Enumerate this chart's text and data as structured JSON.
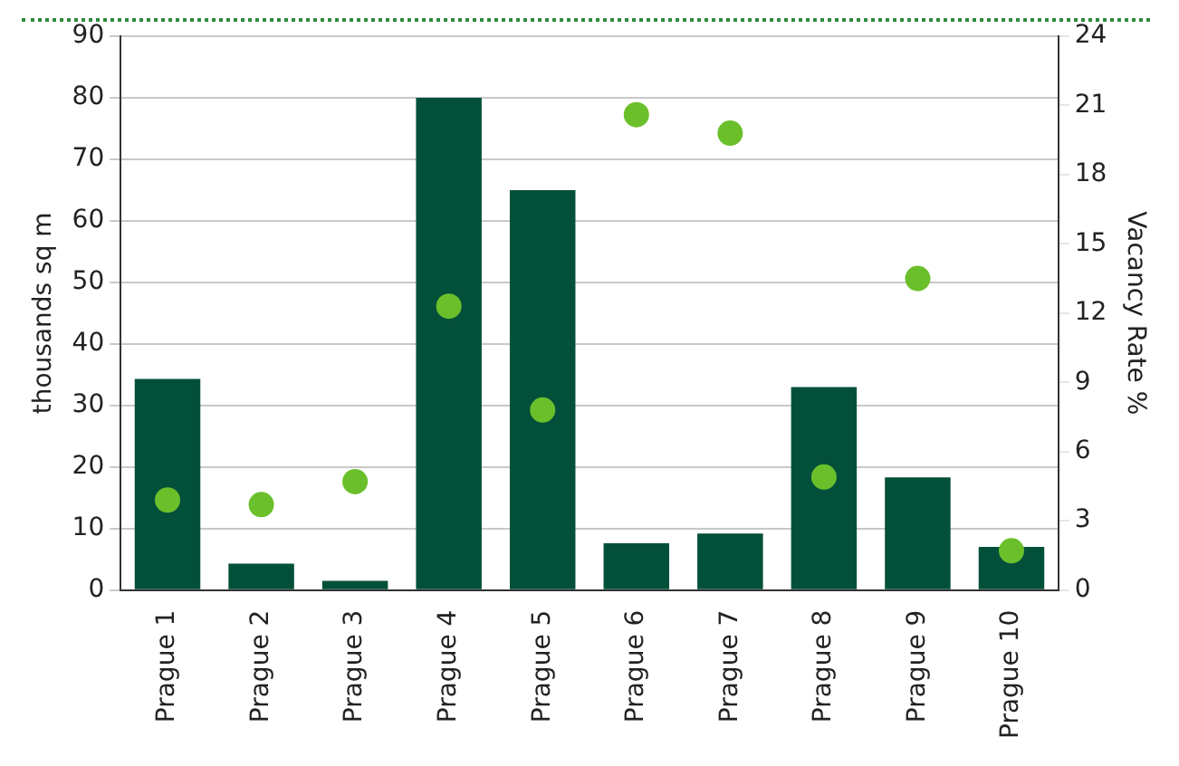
{
  "chart_data": {
    "type": "bar",
    "ylabel": "thousands sq m",
    "y2label": "Vacancy Rate %",
    "categories": [
      "Prague 1",
      "Prague 2",
      "Prague 3",
      "Prague 4",
      "Prague 5",
      "Prague 6",
      "Prague 7",
      "Prague 8",
      "Prague 9",
      "Prague 10"
    ],
    "series": [
      {
        "color": "#03503a",
        "values": [
          34.3,
          4.3,
          1.5,
          80,
          65,
          7.6,
          9.2,
          33,
          18.3,
          7
        ]
      },
      {
        "type": "scatter",
        "axis": "y2",
        "color": "#6abf2a",
        "values": [
          3.9,
          3.7,
          4.7,
          12.3,
          7.8,
          20.6,
          19.8,
          4.9,
          13.5,
          1.7
        ]
      }
    ],
    "ylim": [
      0,
      90
    ],
    "yticks": [
      0,
      10,
      20,
      30,
      40,
      50,
      60,
      70,
      80,
      90
    ],
    "y2lim": [
      0,
      24
    ],
    "y2ticks": [
      0,
      3,
      6,
      9,
      12,
      15,
      18,
      21,
      24
    ],
    "grid": "y",
    "legend": false,
    "marker": "circle"
  }
}
